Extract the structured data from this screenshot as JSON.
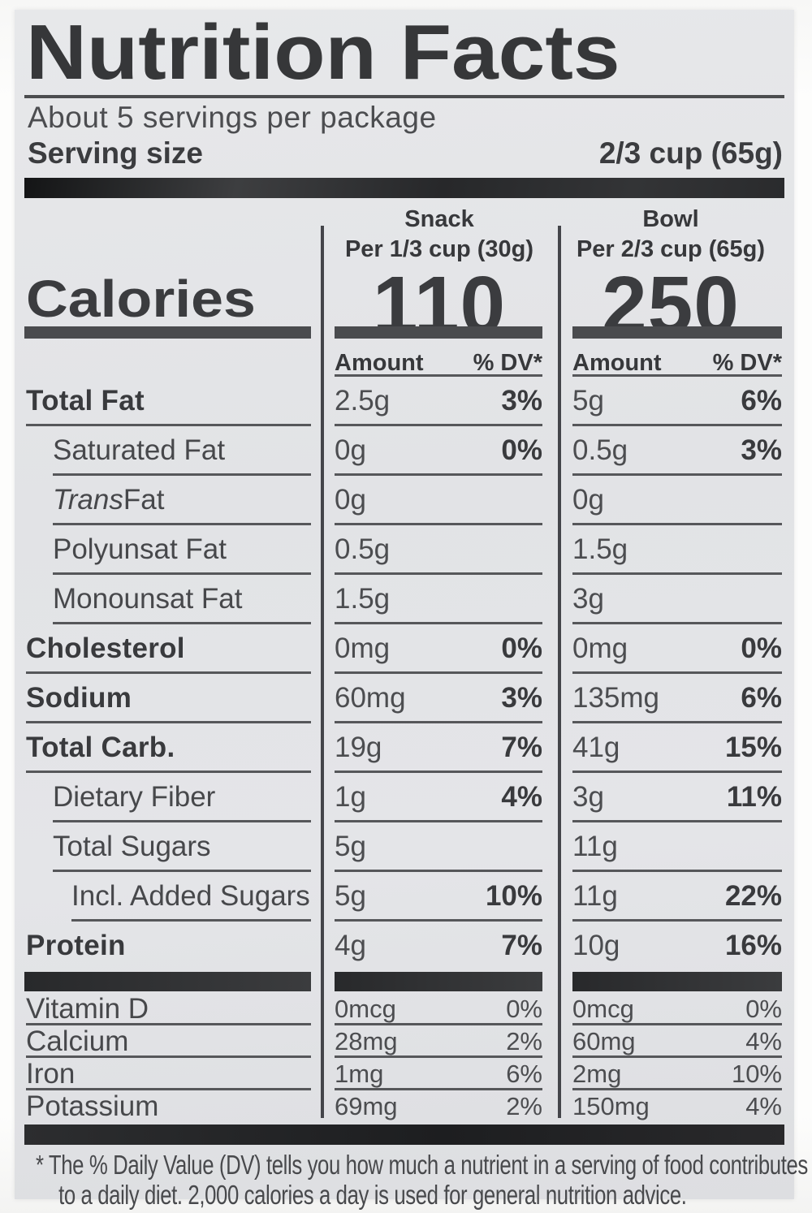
{
  "colors": {
    "label_background": "#e3e4e6",
    "page_background": "#fbfbfa",
    "text": "#47484b",
    "bold_text": "#393a3d",
    "bar": "#28292b",
    "rule": "#56575a"
  },
  "header": {
    "title": "Nutrition Facts",
    "servings_per_package": "About 5 servings per package",
    "serving_size_label": "Serving size",
    "serving_size_value": "2/3 cup (65g)"
  },
  "calories_label": "Calories",
  "columns": {
    "snack": {
      "name": "Snack",
      "per": "Per 1/3 cup (30g)",
      "calories": "110"
    },
    "bowl": {
      "name": "Bowl",
      "per": "Per 2/3 cup (65g)",
      "calories": "250"
    }
  },
  "value_header": {
    "amount": "Amount",
    "dv": "% DV*"
  },
  "nutrients": [
    {
      "label": "Total Fat",
      "snack": {
        "amount": "2.5g",
        "dv": "3%"
      },
      "bowl": {
        "amount": "5g",
        "dv": "6%"
      }
    },
    {
      "label": "Saturated Fat",
      "snack": {
        "amount": "0g",
        "dv": "0%"
      },
      "bowl": {
        "amount": "0.5g",
        "dv": "3%"
      }
    },
    {
      "label_italic": "Trans",
      "label": " Fat",
      "snack": {
        "amount": "0g"
      },
      "bowl": {
        "amount": "0g"
      }
    },
    {
      "label": "Polyunsat Fat",
      "snack": {
        "amount": "0.5g"
      },
      "bowl": {
        "amount": "1.5g"
      }
    },
    {
      "label": "Monounsat Fat",
      "snack": {
        "amount": "1.5g"
      },
      "bowl": {
        "amount": "3g"
      }
    },
    {
      "label": "Cholesterol",
      "snack": {
        "amount": "0mg",
        "dv": "0%"
      },
      "bowl": {
        "amount": "0mg",
        "dv": "0%"
      }
    },
    {
      "label": "Sodium",
      "snack": {
        "amount": "60mg",
        "dv": "3%"
      },
      "bowl": {
        "amount": "135mg",
        "dv": "6%"
      }
    },
    {
      "label": "Total Carb.",
      "snack": {
        "amount": "19g",
        "dv": "7%"
      },
      "bowl": {
        "amount": "41g",
        "dv": "15%"
      }
    },
    {
      "label": "Dietary Fiber",
      "snack": {
        "amount": "1g",
        "dv": "4%"
      },
      "bowl": {
        "amount": "3g",
        "dv": "11%"
      }
    },
    {
      "label": "Total Sugars",
      "snack": {
        "amount": "5g"
      },
      "bowl": {
        "amount": "11g"
      }
    },
    {
      "label": "Incl. Added Sugars",
      "snack": {
        "amount": "5g",
        "dv": "10%"
      },
      "bowl": {
        "amount": "11g",
        "dv": "22%"
      }
    },
    {
      "label": "Protein",
      "snack": {
        "amount": "4g",
        "dv": "7%"
      },
      "bowl": {
        "amount": "10g",
        "dv": "16%"
      }
    }
  ],
  "micronutrients": [
    {
      "label": "Vitamin D",
      "snack": {
        "amount": "0mcg",
        "dv": "0%"
      },
      "bowl": {
        "amount": "0mcg",
        "dv": "0%"
      }
    },
    {
      "label": "Calcium",
      "snack": {
        "amount": "28mg",
        "dv": "2%"
      },
      "bowl": {
        "amount": "60mg",
        "dv": "4%"
      }
    },
    {
      "label": "Iron",
      "snack": {
        "amount": "1mg",
        "dv": "6%"
      },
      "bowl": {
        "amount": "2mg",
        "dv": "10%"
      }
    },
    {
      "label": "Potassium",
      "snack": {
        "amount": "69mg",
        "dv": "2%"
      },
      "bowl": {
        "amount": "150mg",
        "dv": "4%"
      }
    }
  ],
  "footnote": {
    "line1": "* The % Daily Value (DV) tells you how much a nutrient in a serving of food contributes",
    "line2": "to a daily diet. 2,000 calories a day is used for general nutrition advice."
  }
}
